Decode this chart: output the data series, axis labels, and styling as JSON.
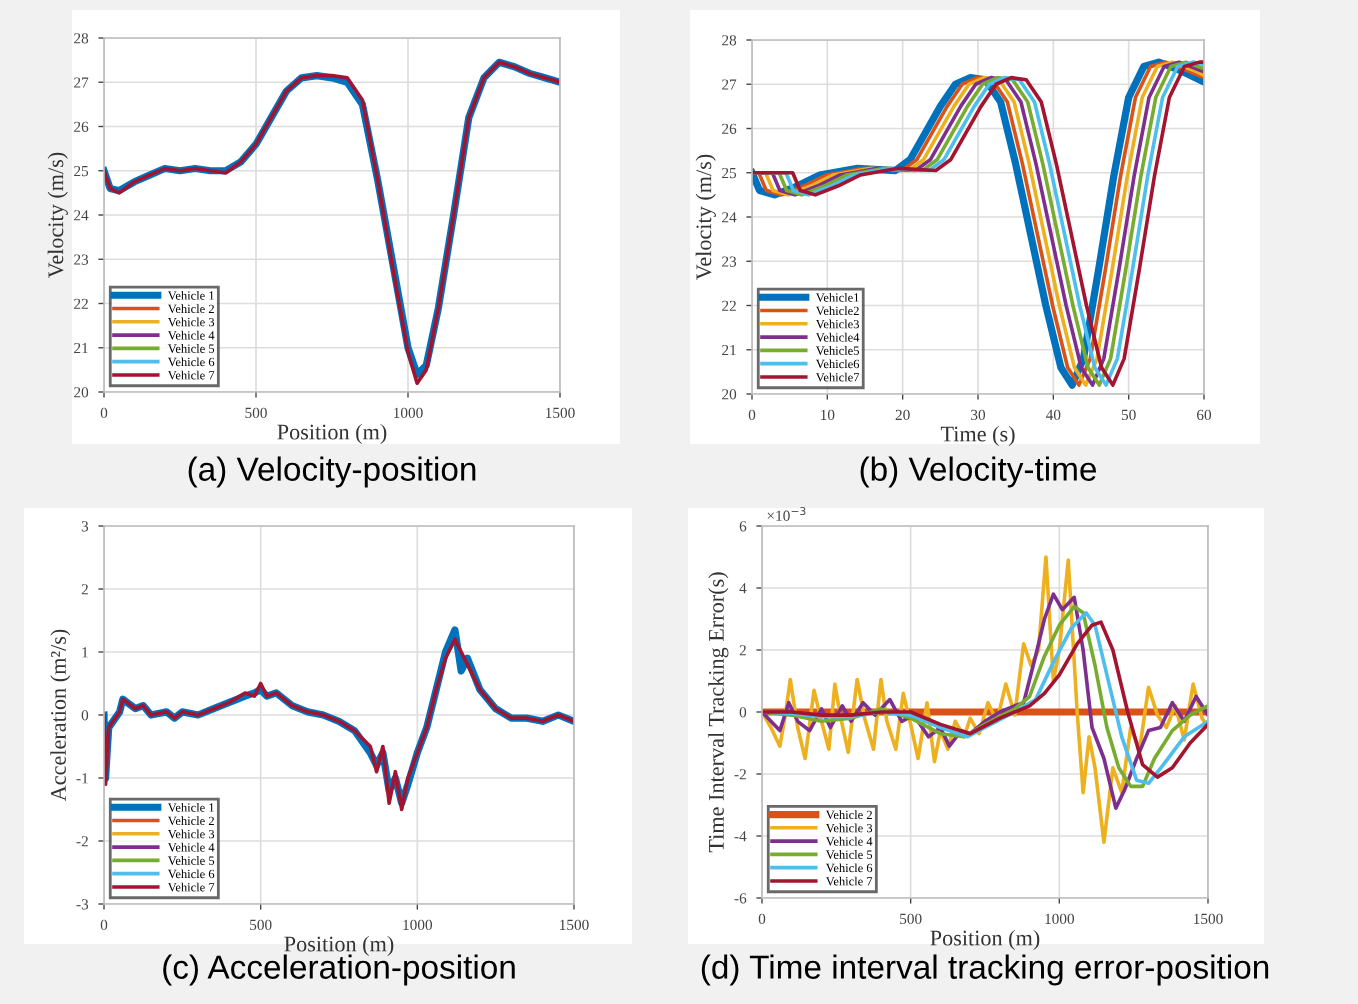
{
  "chart_data": [
    {
      "type": "line",
      "title": "(a) Velocity-position",
      "xlabel": "Position (m)",
      "ylabel": "Velocity (m/s)",
      "xlim": [
        0,
        1500
      ],
      "ylim": [
        20,
        28
      ],
      "xticks": [
        0,
        500,
        1000,
        1500
      ],
      "yticks": [
        20,
        21,
        22,
        23,
        24,
        25,
        26,
        27,
        28
      ],
      "grid": true,
      "legend": "bottom left",
      "x": [
        0,
        20,
        50,
        100,
        150,
        200,
        250,
        300,
        350,
        400,
        450,
        500,
        550,
        600,
        650,
        700,
        750,
        800,
        850,
        900,
        950,
        1000,
        1030,
        1060,
        1100,
        1150,
        1200,
        1250,
        1300,
        1350,
        1400,
        1450,
        1500
      ],
      "series": [
        {
          "name": "Vehicle 1",
          "color": "#0072bd",
          "values": [
            25.0,
            24.6,
            24.55,
            24.75,
            24.9,
            25.05,
            25.0,
            25.05,
            25.0,
            25.0,
            25.2,
            25.6,
            26.2,
            26.8,
            27.1,
            27.15,
            27.1,
            27.0,
            26.5,
            24.8,
            22.9,
            21.0,
            20.4,
            20.6,
            21.9,
            24.0,
            26.2,
            27.1,
            27.45,
            27.35,
            27.2,
            27.1,
            27.0
          ]
        },
        {
          "name": "Vehicle 2",
          "color": "#d95319",
          "values": [
            null,
            null,
            null,
            null,
            null,
            null,
            null,
            null,
            null,
            null,
            null,
            null,
            null,
            null,
            null,
            null,
            null,
            null,
            null,
            null,
            null,
            null,
            null,
            null,
            null,
            null,
            null,
            null,
            null,
            null,
            null,
            null,
            null
          ]
        },
        {
          "name": "Vehicle 3",
          "color": "#edb120",
          "values": [
            null,
            null,
            null,
            null,
            null,
            null,
            null,
            null,
            null,
            null,
            null,
            null,
            null,
            null,
            null,
            null,
            null,
            null,
            null,
            null,
            null,
            null,
            null,
            null,
            null,
            null,
            null,
            null,
            null,
            null,
            null,
            null,
            null
          ]
        },
        {
          "name": "Vehicle 4",
          "color": "#7e2f8e",
          "values": [
            null,
            null,
            null,
            null,
            null,
            null,
            null,
            null,
            null,
            null,
            null,
            null,
            null,
            null,
            null,
            null,
            null,
            null,
            null,
            null,
            null,
            null,
            null,
            null,
            null,
            null,
            null,
            null,
            null,
            null,
            null,
            null,
            null
          ]
        },
        {
          "name": "Vehicle 5",
          "color": "#77ac30",
          "values": [
            null,
            null,
            null,
            null,
            null,
            null,
            null,
            null,
            null,
            null,
            null,
            null,
            null,
            null,
            null,
            null,
            null,
            null,
            null,
            null,
            null,
            null,
            null,
            null,
            null,
            null,
            null,
            null,
            null,
            null,
            null,
            null,
            null
          ]
        },
        {
          "name": "Vehicle 6",
          "color": "#4dbeee",
          "values": [
            null,
            null,
            null,
            null,
            null,
            null,
            null,
            null,
            null,
            null,
            null,
            null,
            null,
            null,
            null,
            null,
            null,
            null,
            null,
            null,
            null,
            null,
            null,
            null,
            null,
            null,
            null,
            null,
            null,
            null,
            null,
            null,
            null
          ]
        },
        {
          "name": "Vehicle 7",
          "color": "#a2142f",
          "values": [
            25.0,
            24.6,
            24.5,
            24.75,
            24.9,
            25.05,
            25.0,
            25.05,
            25.0,
            24.95,
            25.2,
            25.6,
            26.2,
            26.8,
            27.1,
            27.15,
            27.15,
            27.1,
            26.6,
            24.8,
            22.8,
            20.9,
            20.2,
            20.5,
            21.9,
            24.0,
            26.2,
            27.1,
            27.45,
            27.35,
            27.2,
            27.1,
            27.0
          ]
        }
      ]
    },
    {
      "type": "line",
      "title": "(b) Velocity-time",
      "xlabel": "Time (s)",
      "ylabel": "Velocity (m/s)",
      "xlim": [
        0,
        60
      ],
      "ylim": [
        20,
        28
      ],
      "xticks": [
        0,
        10,
        20,
        30,
        40,
        50,
        60
      ],
      "yticks": [
        20,
        21,
        22,
        23,
        24,
        25,
        26,
        27,
        28
      ],
      "grid": true,
      "legend": "bottom left",
      "series": [
        {
          "name": "Vehicle1",
          "color": "#0072bd",
          "x": [
            0,
            1,
            3,
            6,
            9,
            14,
            19,
            21,
            23,
            25,
            27,
            29,
            31,
            33,
            35,
            37,
            39,
            41,
            42.5,
            44,
            46,
            48,
            50,
            52,
            54,
            57,
            60
          ],
          "values": [
            25.0,
            24.6,
            24.5,
            24.7,
            24.95,
            25.1,
            25.05,
            25.3,
            25.9,
            26.5,
            27.0,
            27.15,
            27.1,
            26.6,
            25.2,
            23.6,
            22.0,
            20.6,
            20.2,
            20.8,
            22.8,
            24.9,
            26.7,
            27.4,
            27.5,
            27.3,
            27.05
          ]
        },
        {
          "name": "Vehicle2",
          "color": "#d95319",
          "x": [
            0,
            0.9,
            1.9,
            3.9,
            6.9,
            9.9,
            14.9,
            19.9,
            21.9,
            23.9,
            25.9,
            27.9,
            29.9,
            31.9,
            33.9,
            35.9,
            37.9,
            39.9,
            41.9,
            43.4,
            44.9,
            46.9,
            48.9,
            50.9,
            52.9,
            54.9,
            57.9,
            60
          ],
          "values": [
            25.0,
            25.0,
            24.6,
            24.5,
            24.7,
            24.95,
            25.1,
            25.05,
            25.3,
            25.9,
            26.5,
            27.0,
            27.15,
            27.1,
            26.6,
            25.2,
            23.6,
            22.0,
            20.6,
            20.2,
            20.8,
            22.8,
            24.9,
            26.7,
            27.4,
            27.5,
            27.3,
            27.15
          ]
        },
        {
          "name": "Vehicle3",
          "color": "#edb120",
          "x": [
            0,
            1.8,
            2.8,
            4.8,
            7.8,
            10.8,
            15.8,
            20.8,
            22.8,
            24.8,
            26.8,
            28.8,
            30.8,
            32.8,
            34.8,
            36.8,
            38.8,
            40.8,
            42.8,
            44.3,
            45.8,
            47.8,
            49.8,
            51.8,
            53.8,
            55.8,
            58.8,
            60
          ],
          "values": [
            25.0,
            25.0,
            24.6,
            24.5,
            24.7,
            24.95,
            25.1,
            25.05,
            25.3,
            25.9,
            26.5,
            27.0,
            27.15,
            27.1,
            26.6,
            25.2,
            23.6,
            22.0,
            20.6,
            20.2,
            20.8,
            22.8,
            24.9,
            26.7,
            27.4,
            27.5,
            27.3,
            27.2
          ]
        },
        {
          "name": "Vehicle4",
          "color": "#7e2f8e",
          "x": [
            0,
            2.7,
            3.7,
            5.7,
            8.7,
            11.7,
            16.7,
            21.7,
            23.7,
            25.7,
            27.7,
            29.7,
            31.7,
            33.7,
            35.7,
            37.7,
            39.7,
            41.7,
            43.7,
            45.2,
            46.7,
            48.7,
            50.7,
            52.7,
            54.7,
            56.7,
            59.7
          ],
          "values": [
            25.0,
            25.0,
            24.6,
            24.5,
            24.7,
            24.95,
            25.1,
            25.05,
            25.3,
            25.9,
            26.5,
            27.0,
            27.15,
            27.1,
            26.6,
            25.2,
            23.6,
            22.0,
            20.6,
            20.2,
            20.8,
            22.8,
            24.9,
            26.7,
            27.4,
            27.5,
            27.3
          ]
        },
        {
          "name": "Vehicle5",
          "color": "#77ac30",
          "x": [
            0,
            3.6,
            4.6,
            6.6,
            9.6,
            12.6,
            17.6,
            22.6,
            24.6,
            26.6,
            28.6,
            30.6,
            32.6,
            34.6,
            36.6,
            38.6,
            40.6,
            42.6,
            44.6,
            46.1,
            47.6,
            49.6,
            51.6,
            53.6,
            55.6,
            57.6,
            60
          ],
          "values": [
            25.0,
            25.0,
            24.6,
            24.5,
            24.7,
            24.95,
            25.1,
            25.05,
            25.3,
            25.9,
            26.5,
            27.0,
            27.15,
            27.1,
            26.6,
            25.2,
            23.6,
            22.0,
            20.6,
            20.2,
            20.8,
            22.8,
            24.9,
            26.7,
            27.4,
            27.5,
            27.35
          ]
        },
        {
          "name": "Vehicle6",
          "color": "#4dbeee",
          "x": [
            0,
            4.5,
            5.5,
            7.5,
            10.5,
            13.5,
            18.5,
            23.5,
            25.5,
            27.5,
            29.5,
            31.5,
            33.5,
            35.5,
            37.5,
            39.5,
            41.5,
            43.5,
            45.5,
            47,
            48.5,
            50.5,
            52.5,
            54.5,
            56.5,
            58.5,
            60
          ],
          "values": [
            25.0,
            25.0,
            24.6,
            24.5,
            24.7,
            24.95,
            25.1,
            25.05,
            25.3,
            25.9,
            26.5,
            27.0,
            27.15,
            27.1,
            26.6,
            25.2,
            23.6,
            22.0,
            20.6,
            20.2,
            20.8,
            22.8,
            24.9,
            26.7,
            27.4,
            27.5,
            27.45
          ]
        },
        {
          "name": "Vehicle7",
          "color": "#a2142f",
          "x": [
            0,
            5.4,
            6.4,
            8.4,
            11.4,
            14.4,
            19.4,
            24.4,
            26.4,
            28.4,
            30.4,
            32.4,
            34.4,
            36.4,
            38.4,
            40.4,
            42.4,
            44.4,
            46.4,
            47.9,
            49.4,
            51.4,
            53.4,
            55.4,
            57.4,
            59.4,
            60
          ],
          "values": [
            25.0,
            25.0,
            24.6,
            24.5,
            24.7,
            24.95,
            25.1,
            25.05,
            25.3,
            25.9,
            26.5,
            27.0,
            27.15,
            27.1,
            26.6,
            25.2,
            23.6,
            22.0,
            20.6,
            20.2,
            20.8,
            22.8,
            24.9,
            26.7,
            27.4,
            27.5,
            27.5
          ]
        }
      ]
    },
    {
      "type": "line",
      "title": "(c) Acceleration-position",
      "xlabel": "Position (m)",
      "ylabel": "Acceleration (m²/s)",
      "xlim": [
        0,
        1500
      ],
      "ylim": [
        -3,
        3
      ],
      "xticks": [
        0,
        500,
        1000,
        1500
      ],
      "yticks": [
        -3,
        -2,
        -1,
        0,
        1,
        2,
        3
      ],
      "grid": true,
      "legend": "bottom left",
      "x": [
        0,
        5,
        15,
        50,
        60,
        100,
        125,
        150,
        200,
        225,
        250,
        300,
        350,
        400,
        450,
        480,
        500,
        520,
        550,
        600,
        650,
        700,
        750,
        800,
        850,
        870,
        890,
        910,
        930,
        950,
        970,
        1000,
        1030,
        1060,
        1090,
        1120,
        1140,
        1160,
        1200,
        1250,
        1300,
        1350,
        1400,
        1450,
        1500
      ],
      "series": [
        {
          "name": "Vehicle 1",
          "color": "#0072bd",
          "values": [
            0.0,
            -1.0,
            -0.2,
            0.05,
            0.25,
            0.1,
            0.15,
            0.0,
            0.05,
            -0.05,
            0.05,
            0.0,
            0.1,
            0.2,
            0.3,
            0.35,
            0.4,
            0.3,
            0.35,
            0.15,
            0.05,
            0.0,
            -0.1,
            -0.25,
            -0.6,
            -0.8,
            -0.6,
            -1.2,
            -1.0,
            -1.4,
            -1.1,
            -0.6,
            -0.2,
            0.4,
            1.0,
            1.35,
            0.7,
            0.9,
            0.4,
            0.1,
            -0.05,
            -0.05,
            -0.1,
            0.0,
            -0.1
          ]
        },
        {
          "name": "Vehicle 2",
          "color": "#d95319",
          "values": [
            null,
            null,
            null,
            null,
            null,
            null,
            null,
            null,
            null,
            null,
            null,
            null,
            null,
            null,
            null,
            null,
            null,
            null,
            null,
            null,
            null,
            null,
            null,
            null,
            null,
            null,
            null,
            null,
            null,
            null,
            null,
            null,
            null,
            null,
            null,
            null,
            null,
            null,
            null,
            null,
            null,
            null,
            null,
            null,
            null
          ]
        },
        {
          "name": "Vehicle 3",
          "color": "#edb120",
          "values": [
            null,
            null,
            null,
            null,
            null,
            null,
            null,
            null,
            null,
            null,
            null,
            null,
            null,
            null,
            null,
            null,
            null,
            null,
            null,
            null,
            null,
            null,
            null,
            null,
            null,
            null,
            null,
            null,
            null,
            null,
            null,
            null,
            null,
            null,
            null,
            null,
            null,
            null,
            null,
            null,
            null,
            null,
            null,
            null,
            null
          ]
        },
        {
          "name": "Vehicle 4",
          "color": "#7e2f8e",
          "values": [
            null,
            null,
            null,
            null,
            null,
            null,
            null,
            null,
            null,
            null,
            null,
            null,
            null,
            null,
            null,
            null,
            null,
            null,
            null,
            null,
            null,
            null,
            null,
            null,
            null,
            null,
            null,
            null,
            null,
            null,
            null,
            null,
            null,
            null,
            null,
            null,
            null,
            null,
            null,
            null,
            null,
            null,
            null,
            null,
            null
          ]
        },
        {
          "name": "Vehicle 5",
          "color": "#77ac30",
          "values": [
            null,
            null,
            null,
            null,
            null,
            null,
            null,
            null,
            null,
            null,
            null,
            null,
            null,
            null,
            null,
            null,
            null,
            null,
            null,
            null,
            null,
            null,
            null,
            null,
            null,
            null,
            null,
            null,
            null,
            null,
            null,
            null,
            null,
            null,
            null,
            null,
            null,
            null,
            null,
            null,
            null,
            null,
            null,
            null,
            null
          ]
        },
        {
          "name": "Vehicle 6",
          "color": "#4dbeee",
          "values": [
            null,
            null,
            null,
            null,
            null,
            null,
            null,
            null,
            null,
            null,
            null,
            null,
            null,
            null,
            null,
            null,
            null,
            null,
            null,
            null,
            null,
            null,
            null,
            null,
            null,
            null,
            null,
            null,
            null,
            null,
            null,
            null,
            null,
            null,
            null,
            null,
            null,
            null,
            null,
            null,
            null,
            null,
            null,
            null,
            null
          ]
        },
        {
          "name": "Vehicle 7",
          "color": "#a2142f",
          "values": [
            0.0,
            -1.1,
            -0.2,
            0.05,
            0.25,
            0.1,
            0.15,
            0.0,
            0.05,
            -0.05,
            0.05,
            0.0,
            0.1,
            0.2,
            0.35,
            0.3,
            0.5,
            0.3,
            0.35,
            0.15,
            0.05,
            0.0,
            -0.1,
            -0.25,
            -0.5,
            -0.9,
            -0.5,
            -1.4,
            -0.9,
            -1.5,
            -1.0,
            -0.6,
            -0.2,
            0.4,
            0.9,
            1.2,
            1.0,
            0.8,
            0.4,
            0.1,
            -0.05,
            -0.05,
            -0.1,
            0.0,
            -0.1
          ]
        }
      ]
    },
    {
      "type": "line",
      "title": "(d) Time interval tracking error-position",
      "xlabel": "Position (m)",
      "ylabel": "Time Interval Tracking Error(s)",
      "annotations": [
        "×10$^{−3}$"
      ],
      "xlim": [
        0,
        1500
      ],
      "ylim": [
        -6,
        6
      ],
      "xticks": [
        0,
        500,
        1000,
        1500
      ],
      "yticks": [
        -6,
        -4,
        -2,
        0,
        2,
        4,
        6
      ],
      "grid": true,
      "legend": "bottom left",
      "series": [
        {
          "name": "Vehicle 2",
          "color": "#d95319",
          "x": [
            0,
            1500
          ],
          "values": [
            0,
            0
          ]
        },
        {
          "name": "Vehicle 3",
          "color": "#edb120",
          "x": [
            0,
            30,
            60,
            80,
            95,
            120,
            145,
            175,
            200,
            225,
            245,
            265,
            290,
            320,
            345,
            375,
            400,
            420,
            450,
            475,
            500,
            525,
            555,
            580,
            600,
            625,
            650,
            680,
            700,
            730,
            760,
            790,
            820,
            850,
            880,
            905,
            930,
            955,
            980,
            1000,
            1030,
            1060,
            1080,
            1100,
            1120,
            1150,
            1180,
            1210,
            1240,
            1270,
            1300,
            1330,
            1360,
            1390,
            1420,
            1450,
            1480,
            1500
          ],
          "values": [
            0,
            -0.5,
            -1.1,
            0.0,
            1.05,
            -0.5,
            -1.5,
            0.7,
            -0.3,
            -1.2,
            0.9,
            -0.2,
            -1.3,
            1.05,
            -0.2,
            -1.2,
            1.05,
            -0.3,
            -1.2,
            0.6,
            -0.4,
            -1.5,
            0.3,
            -1.6,
            -0.6,
            -1.2,
            -0.3,
            -0.8,
            -0.2,
            -0.7,
            0.3,
            -0.3,
            0.9,
            -0.1,
            2.2,
            1.5,
            2.0,
            5.0,
            1.0,
            2.0,
            4.9,
            0.0,
            -2.6,
            -0.8,
            -1.8,
            -4.2,
            -1.8,
            -2.6,
            -0.5,
            -1.2,
            0.8,
            -0.1,
            -0.5,
            0.2,
            -0.9,
            0.9,
            -0.2,
            -0.5
          ]
        },
        {
          "name": "Vehicle 4",
          "color": "#7e2f8e",
          "x": [
            0,
            30,
            60,
            90,
            120,
            160,
            200,
            230,
            270,
            300,
            340,
            380,
            430,
            470,
            510,
            560,
            600,
            630,
            670,
            700,
            750,
            800,
            850,
            880,
            920,
            950,
            980,
            1010,
            1050,
            1080,
            1110,
            1150,
            1190,
            1220,
            1260,
            1300,
            1340,
            1380,
            1420,
            1460,
            1500
          ],
          "values": [
            0,
            -0.3,
            -0.6,
            0.3,
            -0.3,
            -0.6,
            0.1,
            -0.5,
            0.2,
            -0.3,
            0.3,
            -0.1,
            0.4,
            -0.3,
            -0.1,
            -0.8,
            -0.5,
            -1.1,
            -0.6,
            -0.7,
            -0.3,
            0.0,
            0.2,
            0.3,
            1.8,
            3.0,
            3.8,
            3.3,
            3.7,
            2.0,
            -0.5,
            -1.5,
            -3.1,
            -2.5,
            -1.5,
            -0.6,
            -0.5,
            0.3,
            -0.3,
            0.5,
            -0.1
          ]
        },
        {
          "name": "Vehicle 5",
          "color": "#77ac30",
          "x": [
            0,
            100,
            200,
            300,
            400,
            500,
            600,
            680,
            750,
            850,
            900,
            950,
            1000,
            1050,
            1080,
            1120,
            1160,
            1200,
            1240,
            1280,
            1320,
            1380,
            1440,
            1500
          ],
          "values": [
            0,
            -0.1,
            -0.3,
            -0.2,
            0.1,
            -0.2,
            -0.7,
            -0.8,
            -0.4,
            0.1,
            0.5,
            1.8,
            2.8,
            3.4,
            3.2,
            1.5,
            -0.5,
            -1.8,
            -2.4,
            -2.4,
            -1.5,
            -0.6,
            -0.1,
            0.2
          ]
        },
        {
          "name": "Vehicle 6",
          "color": "#4dbeee",
          "x": [
            0,
            100,
            200,
            300,
            400,
            500,
            600,
            690,
            750,
            850,
            920,
            980,
            1040,
            1090,
            1120,
            1160,
            1210,
            1260,
            1300,
            1350,
            1420,
            1500
          ],
          "values": [
            0,
            -0.05,
            -0.15,
            -0.15,
            0.0,
            -0.1,
            -0.5,
            -0.8,
            -0.5,
            0.0,
            0.4,
            1.6,
            2.7,
            3.2,
            2.8,
            1.2,
            -0.8,
            -2.2,
            -2.3,
            -1.7,
            -0.8,
            -0.3
          ]
        },
        {
          "name": "Vehicle 7",
          "color": "#a2142f",
          "x": [
            0,
            100,
            200,
            300,
            400,
            500,
            600,
            700,
            800,
            900,
            950,
            1000,
            1060,
            1110,
            1140,
            1180,
            1230,
            1280,
            1330,
            1380,
            1440,
            1500
          ],
          "values": [
            0,
            0,
            -0.1,
            -0.1,
            0.0,
            0.0,
            -0.4,
            -0.7,
            -0.2,
            0.2,
            0.6,
            1.2,
            2.2,
            2.8,
            2.9,
            2.0,
            0.0,
            -1.7,
            -2.1,
            -1.8,
            -1.0,
            -0.4
          ]
        }
      ]
    }
  ]
}
